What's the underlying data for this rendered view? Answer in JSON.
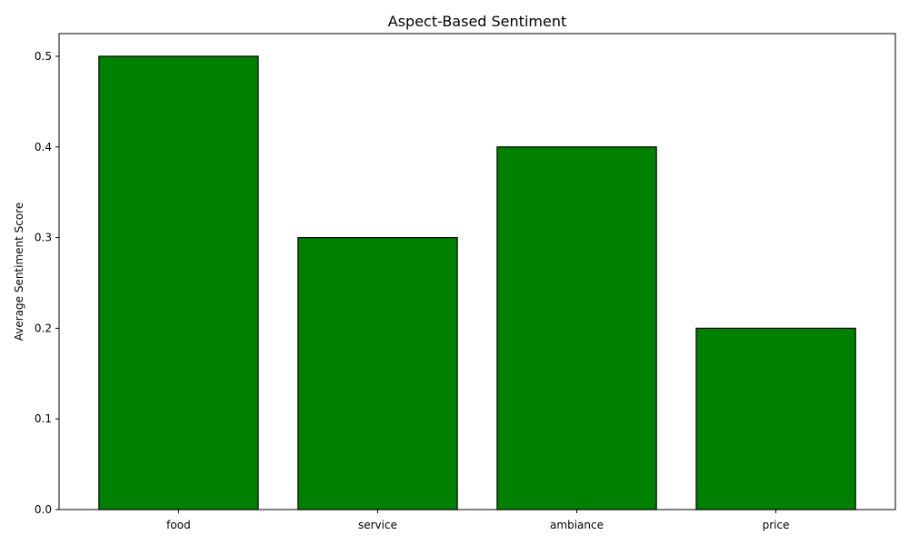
{
  "chart_data": {
    "type": "bar",
    "title": "Aspect-Based Sentiment",
    "xlabel": "",
    "ylabel": "Average Sentiment Score",
    "categories": [
      "food",
      "service",
      "ambiance",
      "price"
    ],
    "values": [
      0.5,
      0.3,
      0.4,
      0.2
    ],
    "ylim": [
      0,
      0.525
    ],
    "yticks": [
      0.0,
      0.1,
      0.2,
      0.3,
      0.4,
      0.5
    ],
    "ytick_labels": [
      "0.0",
      "0.1",
      "0.2",
      "0.3",
      "0.4",
      "0.5"
    ],
    "grid": false,
    "legend": "none",
    "colors": {
      "bar_fill": "#008000",
      "bar_edge": "#000000",
      "axis": "#000000"
    }
  }
}
